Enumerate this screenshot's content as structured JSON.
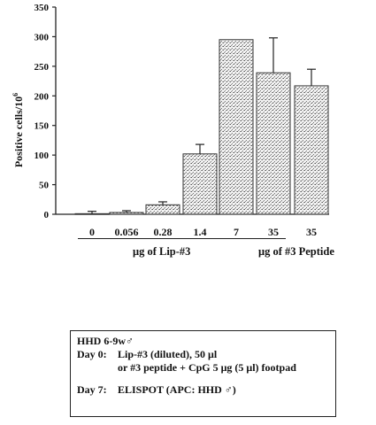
{
  "chart_data": {
    "type": "bar",
    "ylabel": "Positive cells/10",
    "ylabel_sup": "6",
    "ylim": [
      0,
      350
    ],
    "yticks": [
      0,
      50,
      100,
      150,
      200,
      250,
      300,
      350
    ],
    "categories": [
      "0",
      "0.056",
      "0.28",
      "1.4",
      "7",
      "35",
      "35"
    ],
    "values": [
      1,
      3,
      16,
      102,
      295,
      239,
      217
    ],
    "errors": [
      4,
      3,
      5,
      16,
      0,
      59,
      28
    ],
    "bar_fill": "stippled grey",
    "x_groups": [
      {
        "label": "μg of Lip-#3"
      },
      {
        "label": "μg of #3 Peptide"
      }
    ]
  },
  "info_box": {
    "title": "HHD 6-9w♂",
    "lines": [
      {
        "label": "Day 0:",
        "text": "Lip-#3 (diluted), 50 μl"
      },
      {
        "label": "",
        "text": "or #3 peptide + CpG 5 μg (5 μl) footpad"
      },
      {
        "label": "",
        "text": ""
      },
      {
        "label": "Day 7:",
        "text": "ELISPOT (APC: HHD ♂)"
      }
    ]
  }
}
